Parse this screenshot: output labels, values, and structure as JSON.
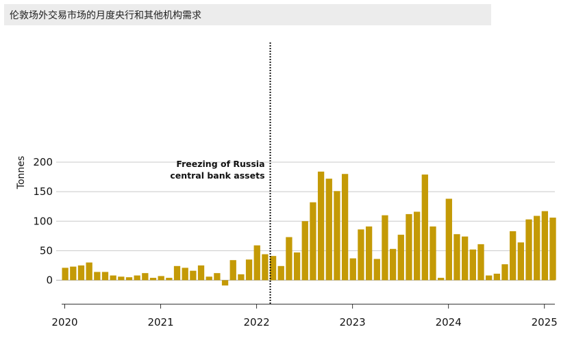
{
  "title": "伦敦场外交易市场的月度央行和其他机构需求",
  "chart_data": {
    "type": "bar",
    "title": "伦敦场外交易市场的月度央行和其他机构需求",
    "ylabel": "Tonnes",
    "xlabel": "",
    "ylim": [
      -12,
      200
    ],
    "yticks": [
      0,
      50,
      100,
      150,
      200
    ],
    "xticks": [
      "2020",
      "2021",
      "2022",
      "2023",
      "2024",
      "2025"
    ],
    "grid": "horizontal",
    "bar_color": "#c49a06",
    "start": "2020-01",
    "annotation": {
      "lines": [
        "Freezing of Russia",
        "central bank assets"
      ],
      "date": "2022-03"
    },
    "series": [
      {
        "values": [
          21,
          23,
          25,
          30,
          14,
          14,
          8,
          6,
          5,
          8,
          12,
          4,
          7,
          4,
          24,
          21,
          16,
          25,
          6,
          12,
          -9,
          34,
          10,
          35,
          59,
          44,
          41,
          24,
          73,
          47,
          100,
          132,
          184,
          172,
          151,
          180,
          37,
          86,
          91,
          36,
          110,
          53,
          77,
          112,
          116,
          179,
          91,
          4,
          138,
          78,
          74,
          52,
          61,
          8,
          11,
          27,
          83,
          64,
          103,
          109,
          117,
          106
        ]
      }
    ]
  }
}
